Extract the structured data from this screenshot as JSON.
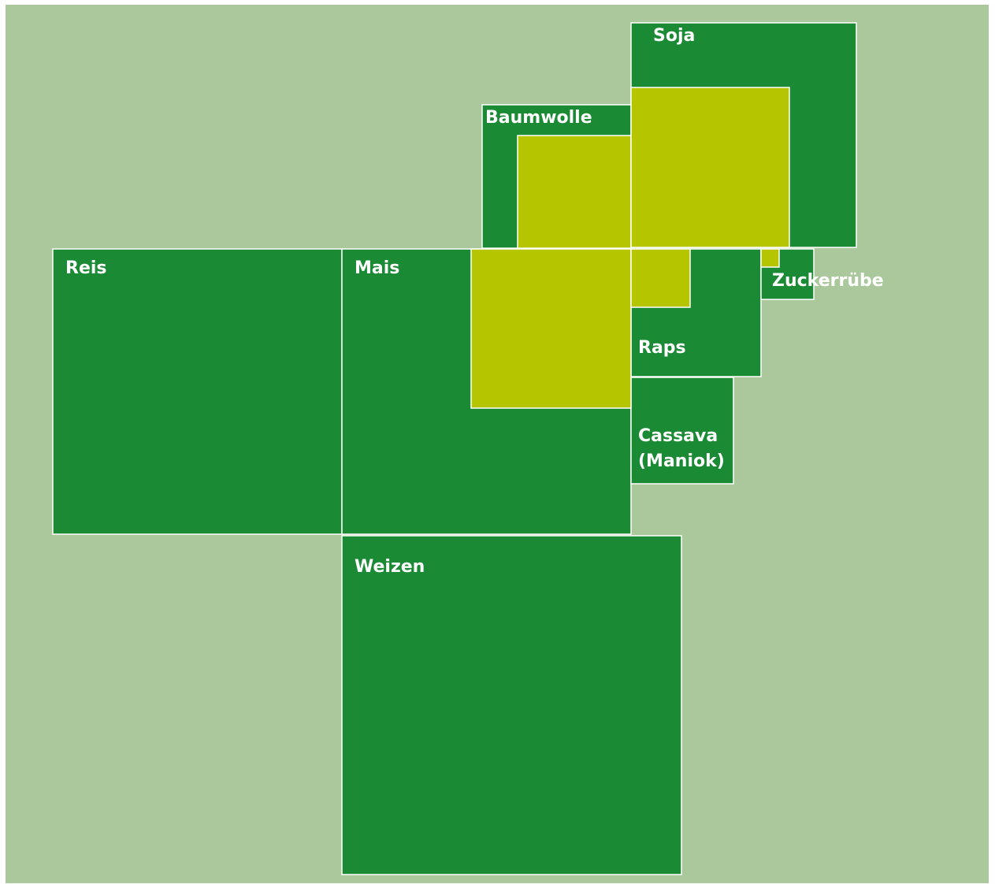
{
  "nodes": [
    {
      "label": "Soja"
    },
    {
      "label": "Baumwolle"
    },
    {
      "label": "Reis"
    },
    {
      "label": "Mais"
    },
    {
      "label": "Zuckerrübe"
    },
    {
      "label": "Raps"
    },
    {
      "label": [
        "Cassava",
        "(Maniok)"
      ]
    },
    {
      "label": "Weizen"
    }
  ]
}
